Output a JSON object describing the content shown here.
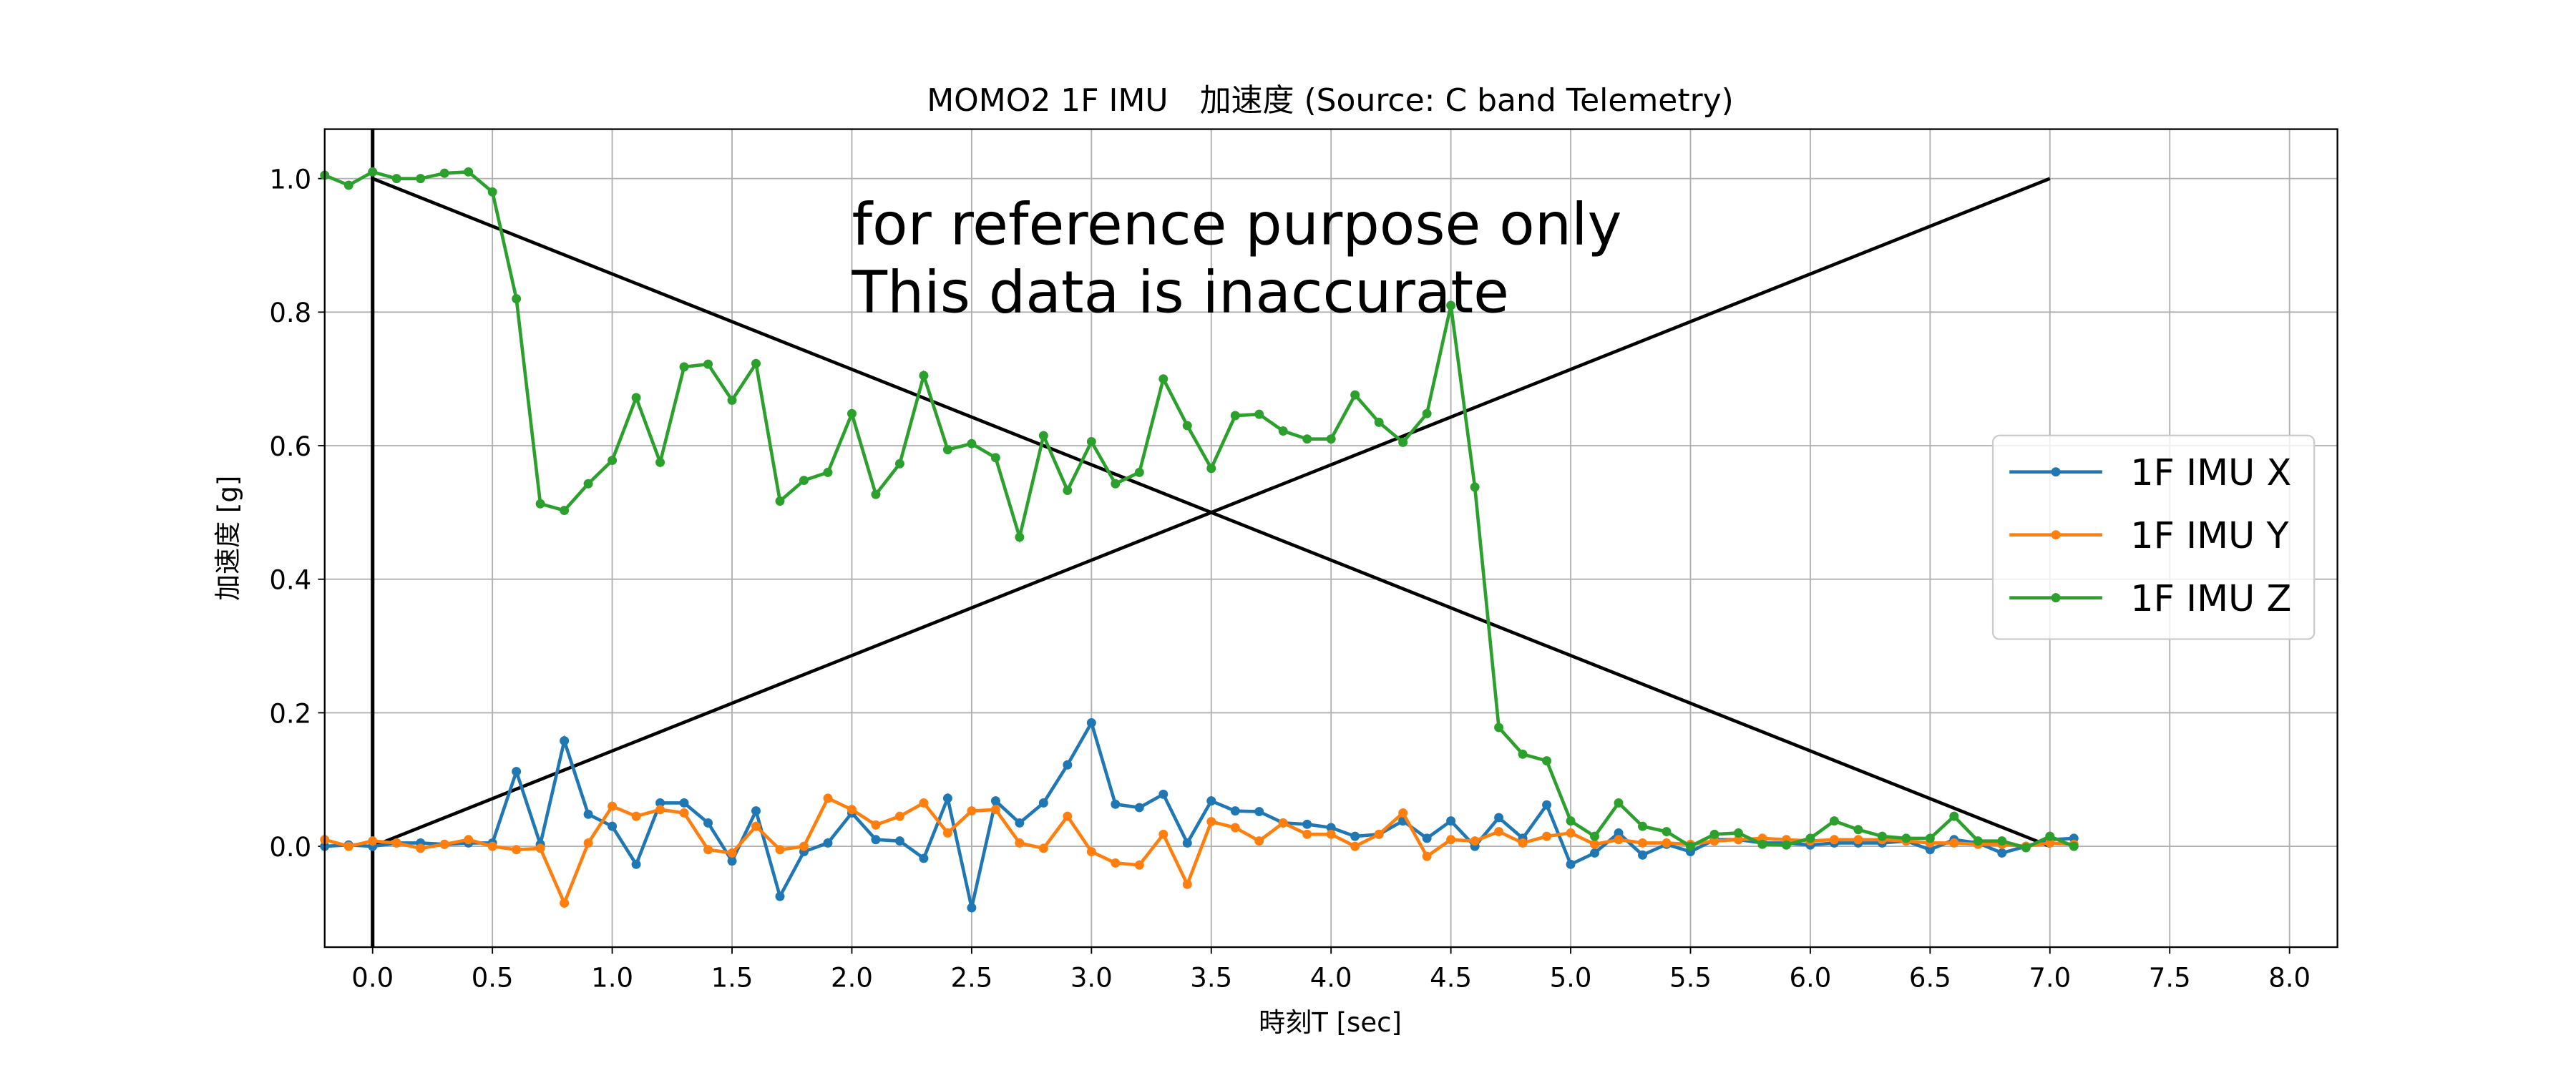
{
  "chart_data": {
    "type": "line",
    "title": "MOMO2 1F IMU　加速度 (Source: C band Telemetry)",
    "x_label": "時刻T [sec]",
    "y_label": "加速度 [g]",
    "annotation": {
      "lines": [
        "for reference purpose only",
        "This data is inaccurate"
      ],
      "x": 2.0,
      "y": 0.8
    },
    "x": [
      -0.2,
      -0.1,
      0,
      0.1,
      0.2,
      0.3,
      0.4,
      0.5,
      0.6,
      0.7,
      0.8,
      0.9,
      1.0,
      1.1,
      1.2,
      1.3,
      1.4,
      1.5,
      1.6,
      1.7,
      1.8,
      1.9,
      2.0,
      2.1,
      2.2,
      2.3,
      2.4,
      2.5,
      2.6,
      2.7,
      2.8,
      2.9,
      3.0,
      3.1,
      3.2,
      3.3,
      3.4,
      3.5,
      3.6,
      3.7,
      3.8,
      3.9,
      4.0,
      4.1,
      4.2,
      4.3,
      4.4,
      4.5,
      4.6,
      4.7,
      4.8,
      4.9,
      5.0,
      5.1,
      5.2,
      5.3,
      5.4,
      5.5,
      5.6,
      5.7,
      5.8,
      5.9,
      6.0,
      6.1,
      6.2,
      6.3,
      6.4,
      6.5,
      6.6,
      6.7,
      6.8,
      6.9,
      7.0,
      7.1
    ],
    "series": [
      {
        "name": "1F IMU X",
        "color": "#1f77b4",
        "values": [
          0.0,
          0.002,
          0.0,
          0.005,
          0.005,
          0.003,
          0.005,
          0.005,
          0.112,
          0.003,
          0.158,
          0.048,
          0.03,
          -0.027,
          0.065,
          0.065,
          0.035,
          -0.022,
          0.053,
          -0.075,
          -0.008,
          0.005,
          0.05,
          0.01,
          0.008,
          -0.018,
          0.072,
          -0.092,
          0.068,
          0.035,
          0.065,
          0.122,
          0.185,
          0.063,
          0.058,
          0.078,
          0.005,
          0.068,
          0.053,
          0.052,
          0.035,
          0.033,
          0.028,
          0.015,
          0.018,
          0.038,
          0.012,
          0.038,
          0.0,
          0.043,
          0.012,
          0.062,
          -0.027,
          -0.01,
          0.02,
          -0.013,
          0.003,
          -0.008,
          0.01,
          0.01,
          0.005,
          0.005,
          0.002,
          0.005,
          0.005,
          0.005,
          0.008,
          -0.005,
          0.01,
          0.005,
          -0.01,
          0.0,
          0.01,
          0.012
        ]
      },
      {
        "name": "1F IMU Y",
        "color": "#ff7f0e",
        "values": [
          0.01,
          0.0,
          0.008,
          0.005,
          -0.003,
          0.003,
          0.01,
          0.0,
          -0.005,
          -0.003,
          -0.085,
          0.005,
          0.06,
          0.045,
          0.055,
          0.05,
          -0.005,
          -0.01,
          0.03,
          -0.005,
          0.0,
          0.072,
          0.055,
          0.032,
          0.045,
          0.065,
          0.02,
          0.053,
          0.055,
          0.005,
          -0.003,
          0.045,
          -0.008,
          -0.025,
          -0.028,
          0.018,
          -0.057,
          0.037,
          0.028,
          0.008,
          0.035,
          0.018,
          0.018,
          0.0,
          0.018,
          0.05,
          -0.015,
          0.01,
          0.008,
          0.022,
          0.005,
          0.015,
          0.02,
          0.003,
          0.01,
          0.005,
          0.005,
          0.003,
          0.008,
          0.01,
          0.012,
          0.01,
          0.008,
          0.01,
          0.01,
          0.01,
          0.008,
          0.005,
          0.005,
          0.003,
          0.003,
          0.0,
          0.005,
          0.003
        ]
      },
      {
        "name": "1F IMU Z",
        "color": "#2ca02c",
        "values": [
          1.005,
          0.99,
          1.01,
          1.0,
          1.0,
          1.008,
          1.01,
          0.98,
          0.82,
          0.513,
          0.503,
          0.543,
          0.578,
          0.672,
          0.575,
          0.718,
          0.722,
          0.668,
          0.723,
          0.517,
          0.548,
          0.56,
          0.648,
          0.527,
          0.573,
          0.705,
          0.594,
          0.603,
          0.582,
          0.463,
          0.615,
          0.533,
          0.606,
          0.543,
          0.56,
          0.7,
          0.63,
          0.566,
          0.645,
          0.647,
          0.622,
          0.61,
          0.61,
          0.676,
          0.635,
          0.605,
          0.648,
          0.81,
          0.538,
          0.178,
          0.138,
          0.128,
          0.038,
          0.015,
          0.065,
          0.03,
          0.022,
          0.0,
          0.018,
          0.02,
          0.003,
          0.002,
          0.012,
          0.038,
          0.025,
          0.015,
          0.012,
          0.012,
          0.045,
          0.008,
          0.008,
          -0.002,
          0.015,
          0.0
        ]
      }
    ],
    "reference_lines": [
      {
        "color": "#000000",
        "x": [
          0,
          7
        ],
        "y": [
          1,
          0
        ]
      },
      {
        "color": "#000000",
        "x": [
          0,
          7
        ],
        "y": [
          0,
          1
        ]
      }
    ],
    "vlines": [
      0
    ],
    "xlim": [
      -0.2,
      8.2
    ],
    "ylim": [
      -0.151,
      1.074
    ],
    "xticks": [
      {
        "value": 0,
        "label": "0.0"
      },
      0.5,
      {
        "value": 1,
        "label": "1.0"
      },
      1.5,
      {
        "value": 2,
        "label": "2.0"
      },
      2.5,
      {
        "value": 3,
        "label": "3.0"
      },
      3.5,
      {
        "value": 4,
        "label": "4.0"
      },
      4.5,
      {
        "value": 5,
        "label": "5.0"
      },
      5.5,
      {
        "value": 6,
        "label": "6.0"
      },
      6.5,
      {
        "value": 7,
        "label": "7.0"
      },
      7.5,
      {
        "value": 8,
        "label": "8.0"
      }
    ],
    "yticks": [
      {
        "value": 0,
        "label": "0.0"
      },
      0.2,
      0.4,
      0.6,
      0.8,
      {
        "value": 1,
        "label": "1.0"
      }
    ],
    "grid": true,
    "legend": "right"
  }
}
